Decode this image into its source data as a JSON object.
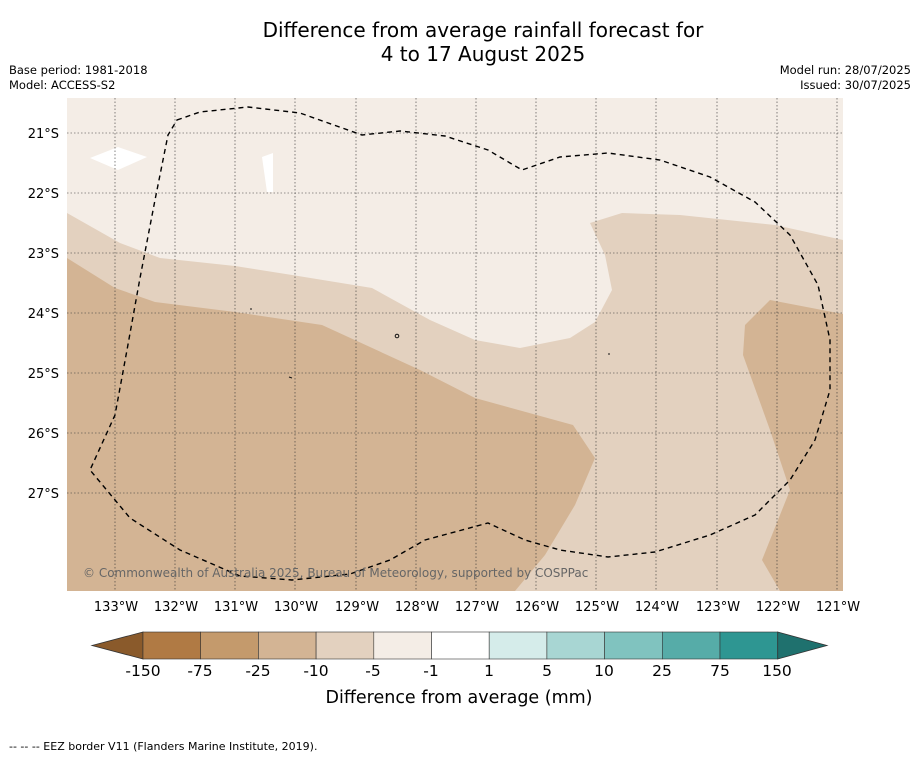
{
  "title": {
    "line1": "Difference from average rainfall forecast for",
    "line2": "4 to 17 August 2025"
  },
  "meta_left": {
    "base_period": "Base period: 1981-2018",
    "model": "Model: ACCESS-S2"
  },
  "meta_right": {
    "model_run": "Model run: 28/07/2025",
    "issued": "Issued: 30/07/2025"
  },
  "map": {
    "lat_labels": [
      "21°S",
      "22°S",
      "23°S",
      "24°S",
      "25°S",
      "26°S",
      "27°S"
    ],
    "lon_labels": [
      "133°W",
      "132°W",
      "131°W",
      "130°W",
      "129°W",
      "128°W",
      "127°W",
      "126°W",
      "125°W",
      "124°W",
      "123°W",
      "122°W",
      "121°W"
    ],
    "copyright": "© Commonwealth of Australia 2025, Bureau of Meteorology, supported by COSPPac"
  },
  "colorbar": {
    "ticks": [
      "-150",
      "-75",
      "-25",
      "-10",
      "-5",
      "-1",
      "1",
      "5",
      "10",
      "25",
      "75",
      "150"
    ],
    "colors": [
      "#8a5a2b",
      "#b07a44",
      "#c49a6c",
      "#d3b494",
      "#e3d1bf",
      "#f4ede6",
      "#ffffff",
      "#d5ecea",
      "#a8d6d3",
      "#80c3bf",
      "#56aca8",
      "#2e9692",
      "#1f716e"
    ],
    "label": "Difference from average (mm)"
  },
  "footer": "-- -- -- EEZ border V11 (Flanders Marine Institute, 2019)."
}
